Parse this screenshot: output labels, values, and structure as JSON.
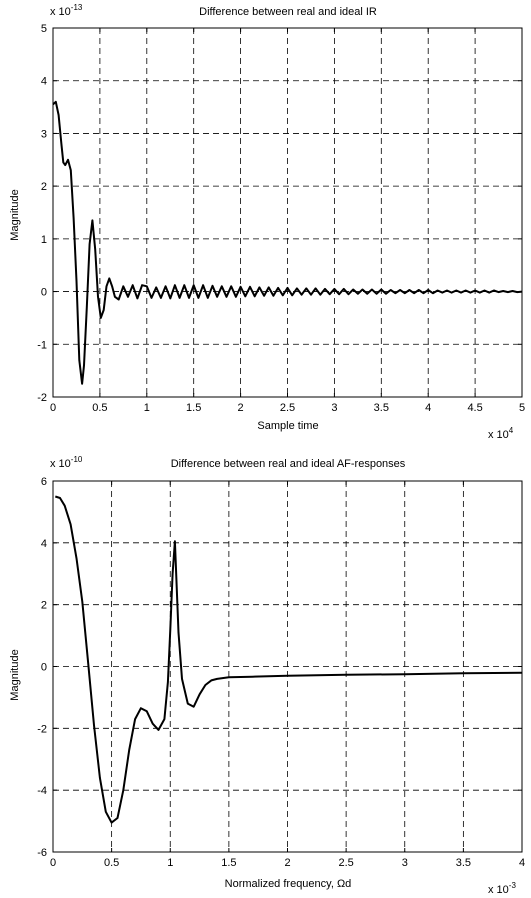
{
  "chart_data": [
    {
      "type": "line",
      "title": "Difference between real and ideal IR",
      "xlabel": "Sample time",
      "ylabel": "Magnitude",
      "x_exponent_label": "x 10",
      "x_exponent": "4",
      "y_exponent_label": "x 10",
      "y_exponent": "-13",
      "xlim": [
        0,
        5
      ],
      "ylim": [
        -2,
        5
      ],
      "x_ticks": [
        0,
        0.5,
        1,
        1.5,
        2,
        2.5,
        3,
        3.5,
        4,
        4.5,
        5
      ],
      "x_tick_labels": [
        "0",
        "0.5",
        "1",
        "1.5",
        "2",
        "2.5",
        "3",
        "3.5",
        "4",
        "4.5",
        "5"
      ],
      "y_ticks": [
        -2,
        -1,
        0,
        1,
        2,
        3,
        4,
        5
      ],
      "y_tick_labels": [
        "-2",
        "-1",
        "0",
        "1",
        "2",
        "3",
        "4",
        "5"
      ],
      "grid": true,
      "series": [
        {
          "color": "#000000",
          "x": [
            0,
            0.03,
            0.06,
            0.09,
            0.11,
            0.13,
            0.16,
            0.19,
            0.22,
            0.25,
            0.28,
            0.31,
            0.33,
            0.36,
            0.39,
            0.42,
            0.45,
            0.48,
            0.51,
            0.54,
            0.57,
            0.6,
            0.63,
            0.66,
            0.7,
            0.75,
            0.8,
            0.85,
            0.9,
            0.95,
            1.0,
            1.05,
            1.1,
            1.15,
            1.2,
            1.25,
            1.3,
            1.35,
            1.4,
            1.45,
            1.5,
            1.55,
            1.6,
            1.65,
            1.7,
            1.75,
            1.8,
            1.85,
            1.9,
            1.95,
            2.0,
            2.05,
            2.1,
            2.15,
            2.2,
            2.25,
            2.3,
            2.35,
            2.4,
            2.45,
            2.5,
            2.55,
            2.6,
            2.65,
            2.7,
            2.75,
            2.8,
            2.85,
            2.9,
            2.95,
            3.0,
            3.05,
            3.1,
            3.15,
            3.2,
            3.25,
            3.3,
            3.35,
            3.4,
            3.45,
            3.5,
            3.55,
            3.6,
            3.65,
            3.7,
            3.75,
            3.8,
            3.85,
            3.9,
            3.95,
            4.0,
            4.05,
            4.1,
            4.15,
            4.2,
            4.25,
            4.3,
            4.35,
            4.4,
            4.45,
            4.5,
            4.55,
            4.6,
            4.65,
            4.7,
            4.75,
            4.8,
            4.85,
            4.9,
            4.95,
            5.0
          ],
          "y": [
            3.55,
            3.6,
            3.35,
            2.8,
            2.45,
            2.4,
            2.5,
            2.3,
            1.4,
            0.2,
            -1.3,
            -1.75,
            -1.4,
            -0.3,
            0.9,
            1.35,
            0.8,
            -0.1,
            -0.5,
            -0.35,
            0.1,
            0.25,
            0.1,
            -0.1,
            -0.15,
            0.1,
            -0.1,
            0.12,
            -0.13,
            0.12,
            0.1,
            -0.12,
            0.08,
            -0.12,
            0.1,
            -0.13,
            0.12,
            -0.12,
            0.12,
            -0.12,
            0.12,
            -0.12,
            0.12,
            -0.12,
            0.11,
            -0.1,
            0.1,
            -0.1,
            0.1,
            -0.1,
            0.09,
            -0.09,
            0.09,
            -0.09,
            0.08,
            -0.08,
            0.08,
            -0.08,
            0.07,
            -0.07,
            0.07,
            -0.07,
            0.06,
            -0.06,
            0.06,
            -0.06,
            0.06,
            -0.06,
            0.05,
            -0.05,
            0.05,
            -0.05,
            0.05,
            -0.05,
            0.04,
            -0.04,
            0.04,
            -0.04,
            0.04,
            -0.04,
            0.04,
            -0.04,
            0.03,
            -0.03,
            0.03,
            -0.03,
            0.03,
            -0.03,
            0.03,
            -0.03,
            0.03,
            -0.03,
            0.02,
            -0.02,
            0.02,
            -0.02,
            0.02,
            -0.02,
            0.02,
            -0.02,
            0.02,
            -0.02,
            0.02,
            -0.02,
            0.02,
            -0.01,
            0.01,
            -0.01,
            0.01,
            -0.01,
            0.0
          ]
        }
      ]
    },
    {
      "type": "line",
      "title": "Difference between real and ideal AF-responses",
      "xlabel": "Normalized frequency, Ωd",
      "ylabel": "Magnitude",
      "x_exponent_label": "x 10",
      "x_exponent": "-3",
      "y_exponent_label": "x 10",
      "y_exponent": "-10",
      "xlim": [
        0,
        4
      ],
      "ylim": [
        -6,
        6
      ],
      "x_ticks": [
        0,
        0.5,
        1,
        1.5,
        2,
        2.5,
        3,
        3.5,
        4
      ],
      "x_tick_labels": [
        "0",
        "0.5",
        "1",
        "1.5",
        "2",
        "2.5",
        "3",
        "3.5",
        "4"
      ],
      "y_ticks": [
        -6,
        -4,
        -2,
        0,
        2,
        4,
        6
      ],
      "y_tick_labels": [
        "-6",
        "-4",
        "-2",
        "0",
        "2",
        "4",
        "6"
      ],
      "grid": true,
      "series": [
        {
          "color": "#000000",
          "x": [
            0.02,
            0.06,
            0.1,
            0.15,
            0.2,
            0.25,
            0.3,
            0.35,
            0.4,
            0.45,
            0.5,
            0.55,
            0.6,
            0.65,
            0.7,
            0.75,
            0.8,
            0.85,
            0.9,
            0.95,
            0.98,
            1.0,
            1.02,
            1.04,
            1.07,
            1.1,
            1.15,
            1.2,
            1.25,
            1.3,
            1.35,
            1.4,
            1.5,
            1.7,
            2.0,
            2.5,
            3.0,
            3.5,
            4.0
          ],
          "y": [
            5.5,
            5.45,
            5.2,
            4.6,
            3.5,
            2.1,
            0.1,
            -1.9,
            -3.6,
            -4.7,
            -5.05,
            -4.9,
            -4.0,
            -2.7,
            -1.7,
            -1.35,
            -1.45,
            -1.85,
            -2.05,
            -1.7,
            -0.5,
            1.2,
            3.0,
            4.05,
            1.1,
            -0.4,
            -1.2,
            -1.3,
            -0.9,
            -0.6,
            -0.45,
            -0.4,
            -0.35,
            -0.33,
            -0.3,
            -0.27,
            -0.25,
            -0.22,
            -0.2
          ]
        }
      ]
    }
  ]
}
